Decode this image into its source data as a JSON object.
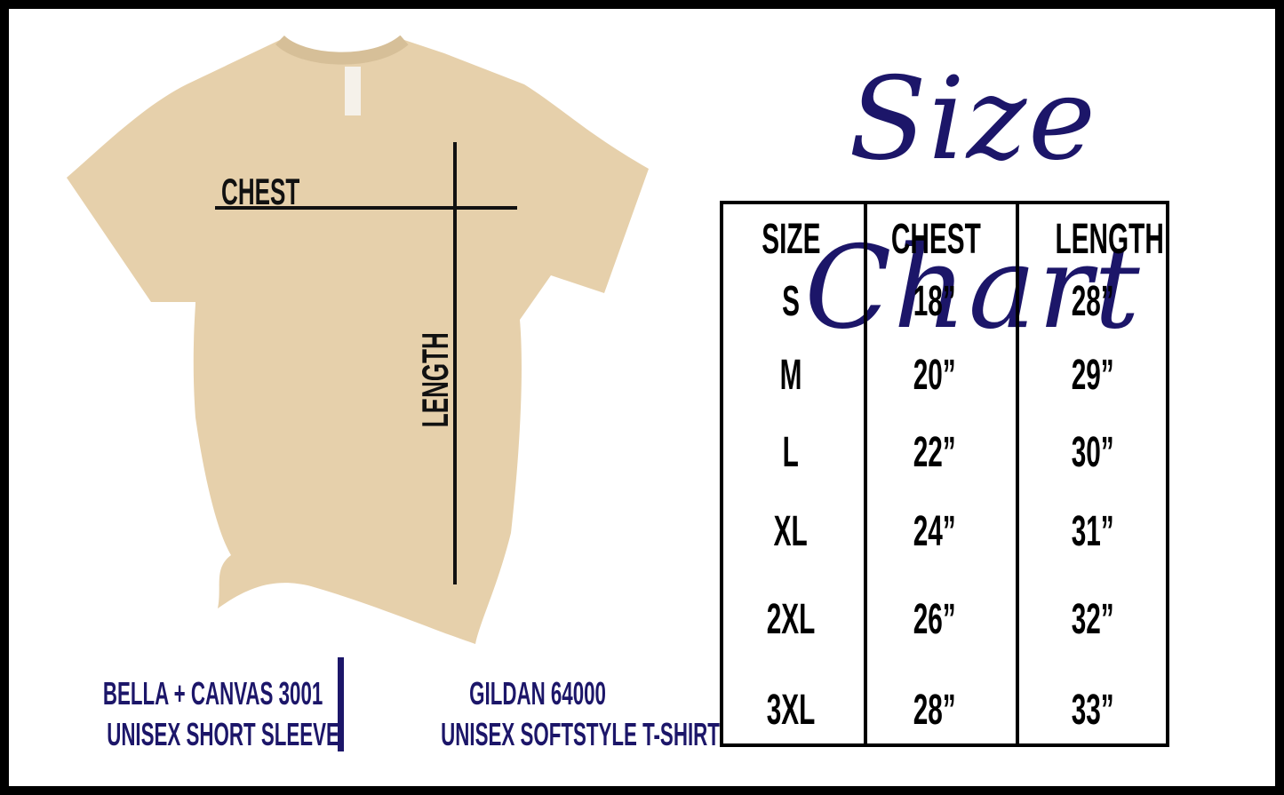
{
  "title": "Size Chart",
  "shirt": {
    "chest_label": "CHEST",
    "length_label": "LENGTH",
    "color": "#e6d0ab"
  },
  "table": {
    "headers": [
      "SIZE",
      "CHEST",
      "LENGTH"
    ],
    "rows": [
      [
        "S",
        "18”",
        "28”"
      ],
      [
        "M",
        "20”",
        "29”"
      ],
      [
        "L",
        "22”",
        "30”"
      ],
      [
        "XL",
        "24”",
        "31”"
      ],
      [
        "2XL",
        "26”",
        "32”"
      ],
      [
        "3XL",
        "28”",
        "33”"
      ]
    ]
  },
  "brands": [
    {
      "line1": "BELLA + CANVAS 3001",
      "line2": "UNISEX SHORT SLEEVE"
    },
    {
      "line1": "GILDAN 64000",
      "line2": "UNISEX SOFTSTYLE T-SHIRT"
    }
  ],
  "colors": {
    "accent": "#1c1669",
    "text": "#000000"
  }
}
